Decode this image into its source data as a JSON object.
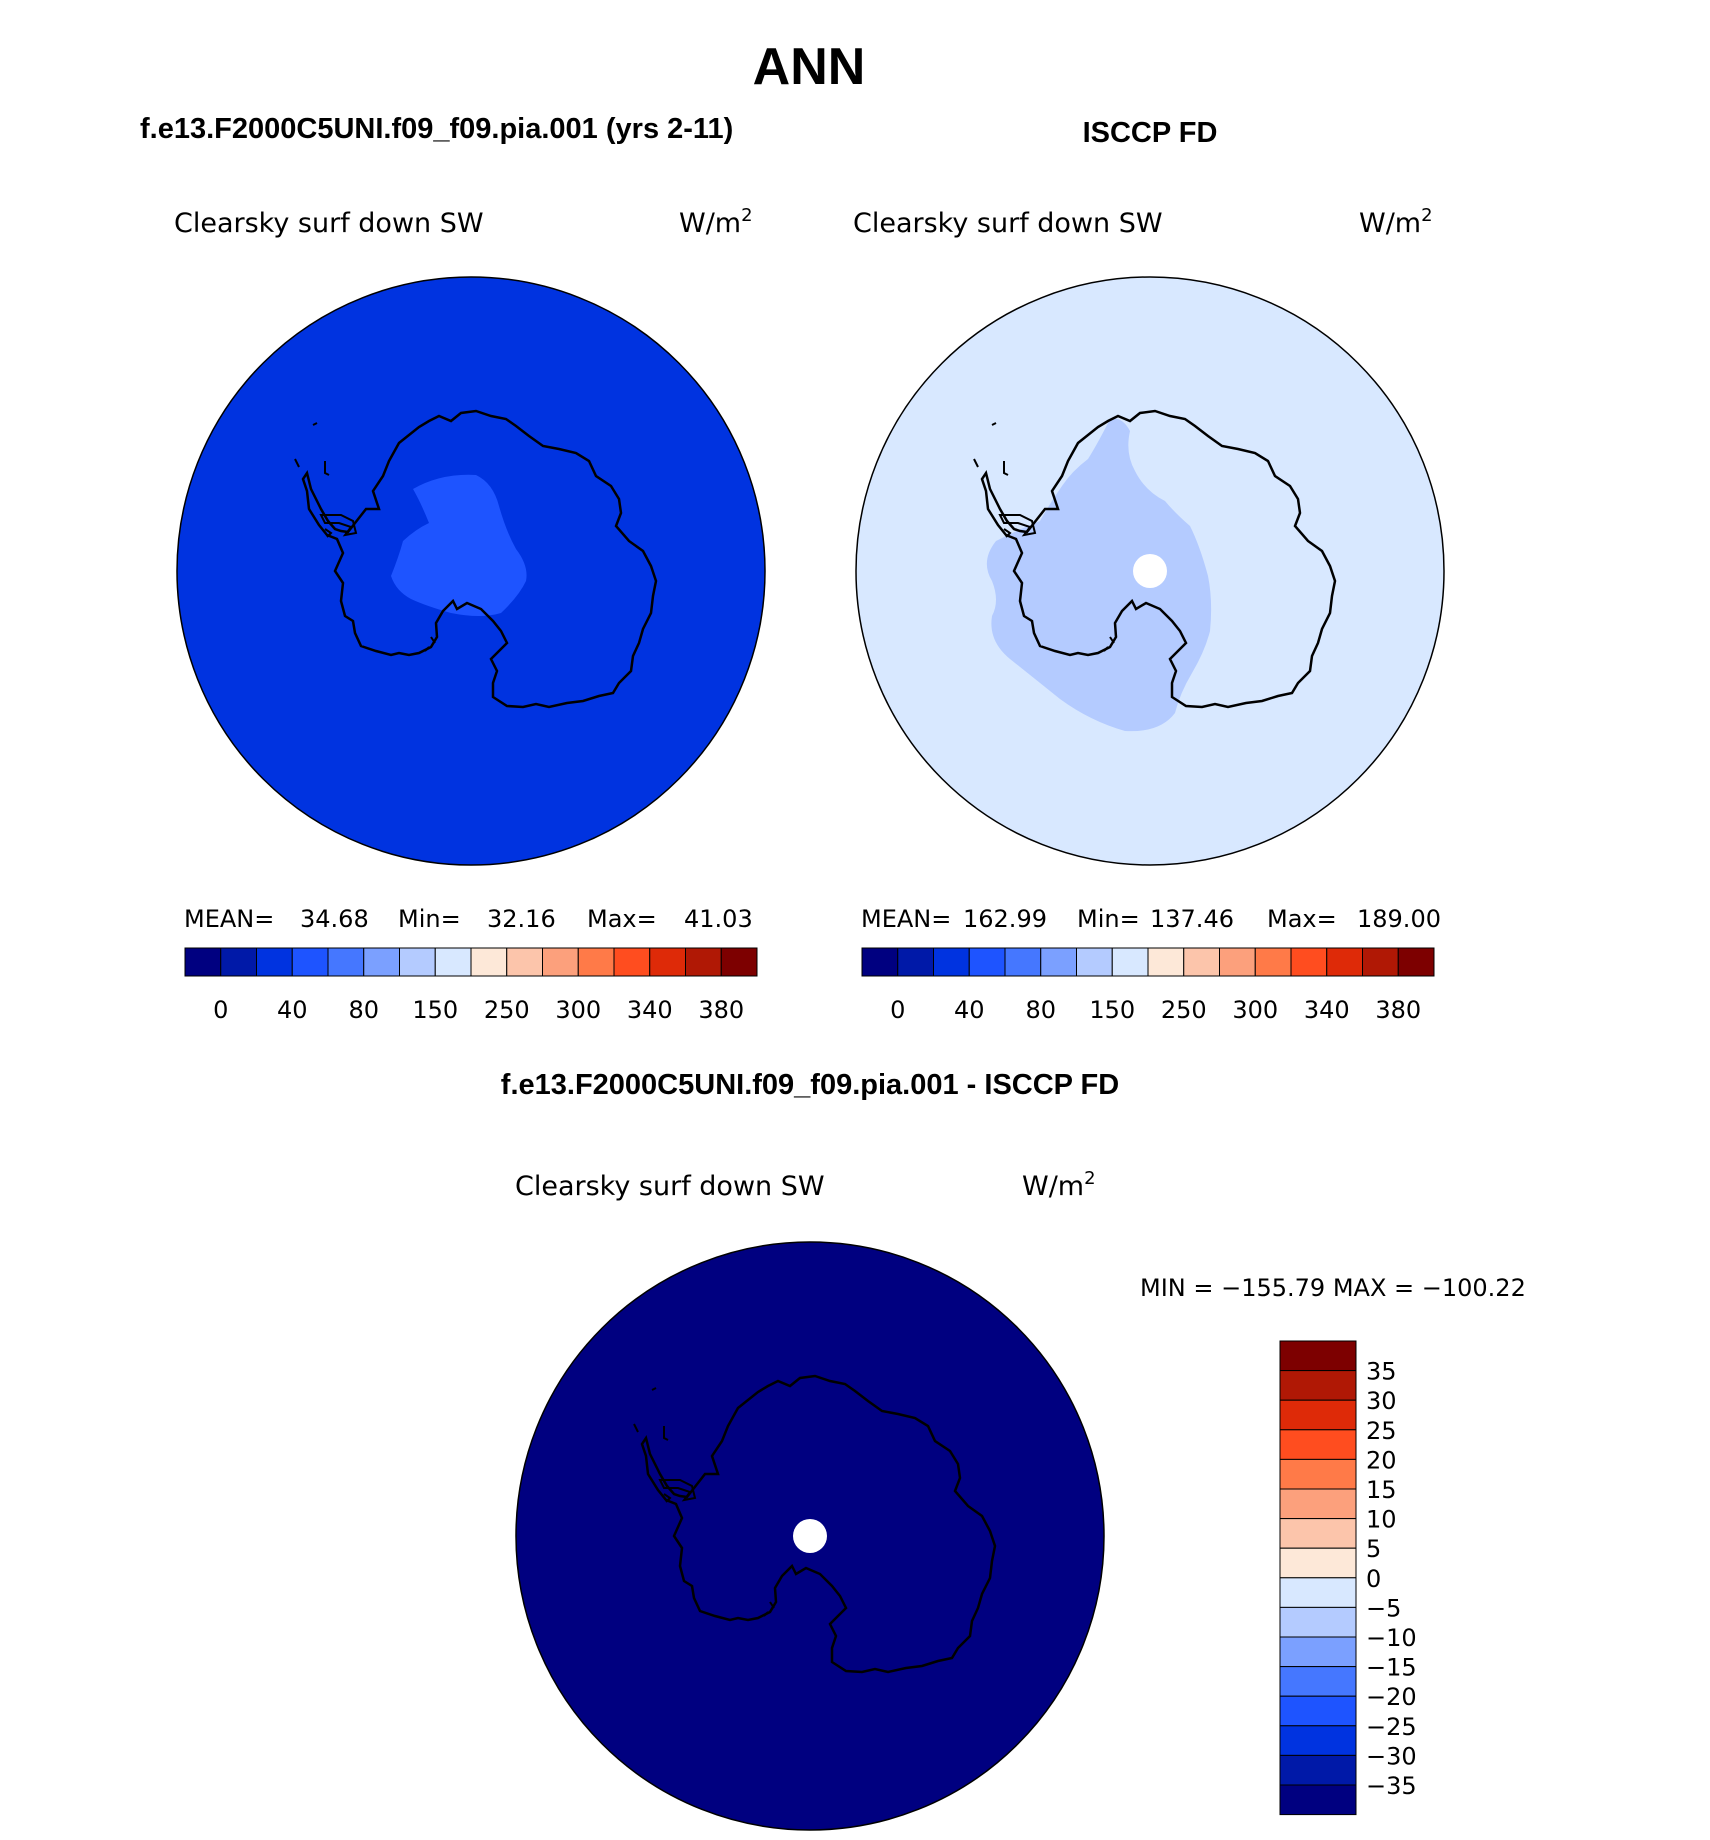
{
  "main_title": "ANN",
  "colors": {
    "scale": [
      "#000080",
      "#0019a8",
      "#0033e0",
      "#1e54ff",
      "#4577ff",
      "#7ba0ff",
      "#b4cbff",
      "#d8e8ff",
      "#fde8d8",
      "#fcc5ab",
      "#fca07c",
      "#ff7a48",
      "#ff4d1f",
      "#de2a08",
      "#b01805",
      "#7d0000"
    ],
    "coast": "#000000",
    "missing": "#ffffff"
  },
  "panels": {
    "model": {
      "title": "f.e13.F2000C5UNI.f09_f09.pia.001 (yrs 2-11)",
      "variable": "Clearsky surf down SW",
      "units_base": "W/m",
      "units_exp": "2",
      "stats": {
        "mean_label": "MEAN=",
        "mean": "34.68",
        "min_label": "Min=",
        "min": "32.16",
        "max_label": "Max=",
        "max": "41.03"
      },
      "colorbar_labels": [
        "0",
        "40",
        "80",
        "150",
        "250",
        "300",
        "340",
        "380"
      ],
      "background_level": "#0033e0",
      "inner_level": "#1e54ff"
    },
    "obs": {
      "title": "ISCCP FD",
      "variable": "Clearsky surf down SW",
      "units_base": "W/m",
      "units_exp": "2",
      "stats": {
        "mean_label": "MEAN=",
        "mean": "162.99",
        "min_label": "Min=",
        "min": "137.46",
        "max_label": "Max=",
        "max": "189.00"
      },
      "colorbar_labels": [
        "0",
        "40",
        "80",
        "150",
        "250",
        "300",
        "340",
        "380"
      ],
      "background_level": "#d8e8ff",
      "inner_level": "#b4cbff"
    },
    "diff": {
      "title": "f.e13.F2000C5UNI.f09_f09.pia.001 - ISCCP FD",
      "variable": "Clearsky surf down SW",
      "units_base": "W/m",
      "units_exp": "2",
      "minmax": "MIN = −155.79 MAX = −100.22",
      "colorbar_labels": [
        "35",
        "30",
        "25",
        "20",
        "15",
        "10",
        "5",
        "0",
        "−5",
        "−10",
        "−15",
        "−20",
        "−25",
        "−30",
        "−35"
      ],
      "background_level": "#000080"
    }
  }
}
